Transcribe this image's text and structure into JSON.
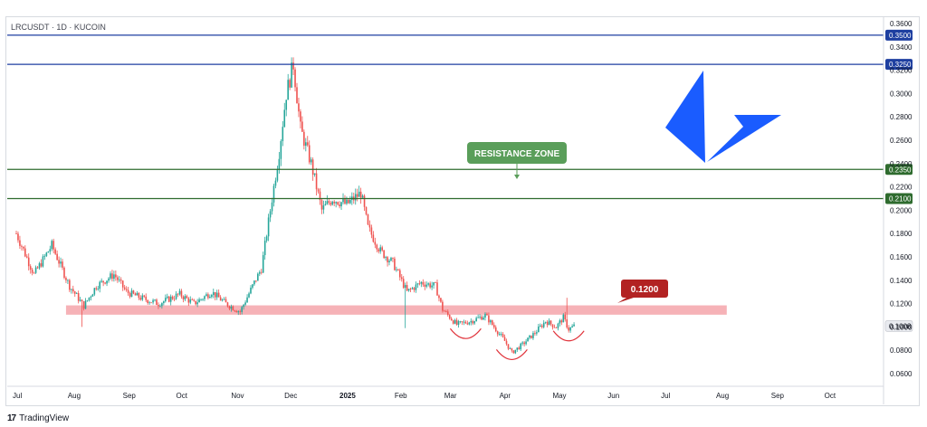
{
  "header": {
    "symbol_label": "LRCUSDT · 1D · KUCOIN"
  },
  "footer": {
    "brand_logo": "17",
    "brand_name": "TradingView"
  },
  "annotations": {
    "resistance_label": "RESISTANCE ZONE",
    "support_label": "0.1200"
  },
  "colors": {
    "background": "#ffffff",
    "up_candle": "#26a69a",
    "down_candle": "#ef5350",
    "blue_line": "#1e3fa0",
    "green_line": "#2e6b2e",
    "resistance_badge": "#5a9e5a",
    "support_badge": "#b22222",
    "support_zone": "#f4a5aa",
    "logo_blue": "#1a5cff"
  },
  "chart_data": {
    "type": "candlestick",
    "title": "LRCUSDT · 1D · KUCOIN",
    "y_axis": {
      "ylim": [
        0.05,
        0.365
      ],
      "ticks": [
        "0.3600",
        "0.3400",
        "0.3200",
        "0.3000",
        "0.2800",
        "0.2600",
        "0.2400",
        "0.2200",
        "0.2000",
        "0.1800",
        "0.1600",
        "0.1400",
        "0.1200",
        "0.1000",
        "0.0800",
        "0.0600"
      ],
      "tick_values": [
        0.36,
        0.34,
        0.32,
        0.3,
        0.28,
        0.26,
        0.24,
        0.22,
        0.2,
        0.18,
        0.16,
        0.14,
        0.12,
        0.1,
        0.08,
        0.06
      ]
    },
    "x_axis": {
      "ticks": [
        "Jul",
        "Aug",
        "Sep",
        "Oct",
        "Nov",
        "Dec",
        "2025",
        "Feb",
        "Mar",
        "Apr",
        "May",
        "Jun",
        "Jul",
        "Aug",
        "Sep",
        "Oct"
      ],
      "tick_days": [
        0,
        31,
        62,
        92,
        123,
        153,
        184,
        215,
        243,
        274,
        304,
        335,
        365,
        396,
        427,
        457
      ]
    },
    "horizontal_levels": [
      {
        "price": 0.35,
        "label": "0.3500",
        "color": "#1e3fa0"
      },
      {
        "price": 0.325,
        "label": "0.3250",
        "color": "#1e3fa0"
      },
      {
        "price": 0.235,
        "label": "0.2350",
        "color": "#2e6b2e"
      },
      {
        "price": 0.21,
        "label": "0.2100",
        "color": "#2e6b2e"
      }
    ],
    "last_price": {
      "price": 0.1008,
      "label": "0.1008"
    },
    "support_zone": {
      "from": 0.1105,
      "to": 0.1185,
      "start_day": 28,
      "end_day": 400
    },
    "arcs": [
      {
        "center_day": 253,
        "price": 0.0955
      },
      {
        "center_day": 279,
        "price": 0.0775
      },
      {
        "center_day": 311,
        "price": 0.0935
      }
    ],
    "price_path": [
      [
        0,
        0.18
      ],
      [
        10,
        0.145
      ],
      [
        20,
        0.17
      ],
      [
        30,
        0.135
      ],
      [
        38,
        0.118
      ],
      [
        45,
        0.135
      ],
      [
        55,
        0.145
      ],
      [
        62,
        0.13
      ],
      [
        70,
        0.125
      ],
      [
        80,
        0.12
      ],
      [
        92,
        0.128
      ],
      [
        100,
        0.12
      ],
      [
        110,
        0.13
      ],
      [
        118,
        0.12
      ],
      [
        126,
        0.113
      ],
      [
        133,
        0.135
      ],
      [
        138,
        0.15
      ],
      [
        143,
        0.2
      ],
      [
        148,
        0.25
      ],
      [
        152,
        0.3
      ],
      [
        156,
        0.325
      ],
      [
        160,
        0.27
      ],
      [
        166,
        0.24
      ],
      [
        172,
        0.2
      ],
      [
        178,
        0.21
      ],
      [
        186,
        0.205
      ],
      [
        194,
        0.215
      ],
      [
        198,
        0.185
      ],
      [
        205,
        0.165
      ],
      [
        212,
        0.155
      ],
      [
        220,
        0.13
      ],
      [
        228,
        0.138
      ],
      [
        236,
        0.135
      ],
      [
        240,
        0.115
      ],
      [
        248,
        0.102
      ],
      [
        256,
        0.105
      ],
      [
        264,
        0.11
      ],
      [
        270,
        0.098
      ],
      [
        275,
        0.088
      ],
      [
        279,
        0.078
      ],
      [
        285,
        0.085
      ],
      [
        292,
        0.095
      ],
      [
        298,
        0.105
      ],
      [
        304,
        0.1
      ],
      [
        308,
        0.108
      ],
      [
        311,
        0.098
      ],
      [
        314,
        0.1008
      ]
    ],
    "spikes": [
      {
        "day": 155,
        "high": 0.331
      },
      {
        "day": 219,
        "low": 0.099
      },
      {
        "day": 37,
        "low": 0.1
      },
      {
        "day": 310,
        "high": 0.125
      }
    ]
  }
}
